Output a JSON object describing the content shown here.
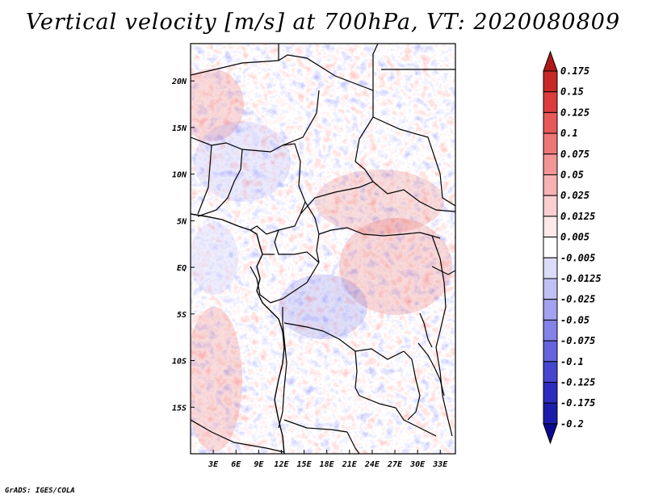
{
  "title": "Vertical velocity [m/s] at 700hPa, VT: 2020080809",
  "credit": "GrADS: IGES/COLA",
  "map": {
    "region": "Central Africa",
    "variable": "Vertical velocity",
    "units": "m/s",
    "level": "700hPa",
    "valid_time": "2020080809",
    "lon_range": [
      0,
      35
    ],
    "lat_range": [
      -20,
      24
    ],
    "x_ticks": [
      {
        "value": 3,
        "label": "3E"
      },
      {
        "value": 6,
        "label": "6E"
      },
      {
        "value": 9,
        "label": "9E"
      },
      {
        "value": 12,
        "label": "12E"
      },
      {
        "value": 15,
        "label": "15E"
      },
      {
        "value": 18,
        "label": "18E"
      },
      {
        "value": 21,
        "label": "21E"
      },
      {
        "value": 24,
        "label": "24E"
      },
      {
        "value": 27,
        "label": "27E"
      },
      {
        "value": 30,
        "label": "30E"
      },
      {
        "value": 33,
        "label": "33E"
      }
    ],
    "y_ticks": [
      {
        "value": 20,
        "label": "20N"
      },
      {
        "value": 15,
        "label": "15N"
      },
      {
        "value": 10,
        "label": "10N"
      },
      {
        "value": 5,
        "label": "5N"
      },
      {
        "value": 0,
        "label": "EQ"
      },
      {
        "value": -5,
        "label": "5S"
      },
      {
        "value": -10,
        "label": "10S"
      },
      {
        "value": -15,
        "label": "15S"
      }
    ]
  },
  "colorbar": {
    "labels": [
      "0.175",
      "0.15",
      "0.125",
      "0.1",
      "0.075",
      "0.05",
      "0.025",
      "0.0125",
      "0.005",
      "-0.005",
      "-0.0125",
      "-0.025",
      "-0.05",
      "-0.075",
      "-0.1",
      "-0.125",
      "-0.175",
      "-0.2"
    ],
    "colors": [
      "#b01818",
      "#c82828",
      "#dc3c3c",
      "#e85858",
      "#ef7676",
      "#f49494",
      "#f8b2b2",
      "#fbcfcf",
      "#fde9e9",
      "#ffffff",
      "#dcdcfa",
      "#c0c0f6",
      "#a2a2f0",
      "#8282e8",
      "#6464de",
      "#4646d0",
      "#2c2cc0",
      "#1c1cac",
      "#0a0a90"
    ]
  }
}
